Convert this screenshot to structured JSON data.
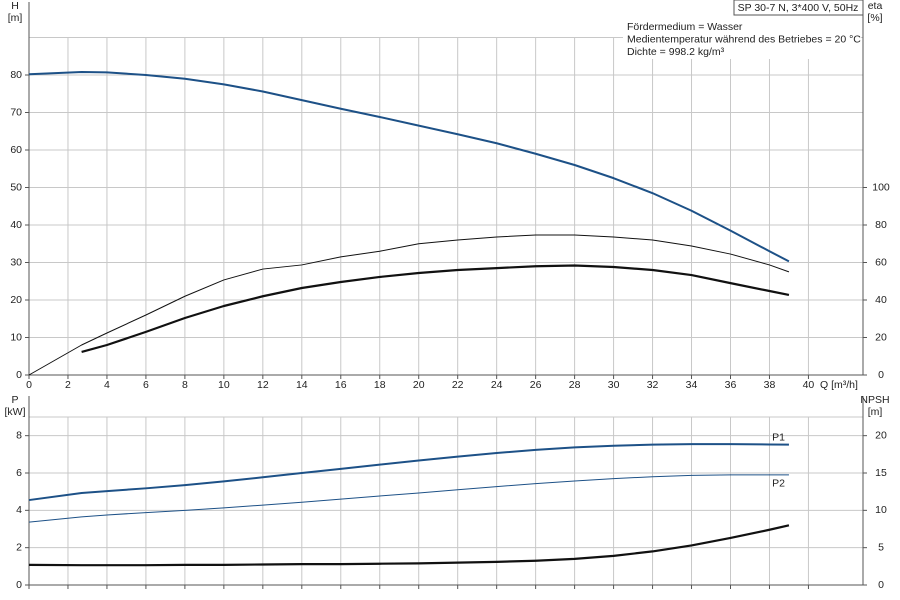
{
  "chart_data": [
    {
      "type": "line",
      "title": "SP 30-7 N, 3*400 V, 50Hz",
      "annotations": [
        "Fördermedium = Wasser",
        "Medientemperatur während des Betriebes = 20 °C",
        "Dichte = 998.2 kg/m³"
      ],
      "x_label": "Q [m³/h]",
      "y_label": "H",
      "y_unit": "[m]",
      "y2_label": "eta",
      "y2_unit": "[%]",
      "x": [
        0,
        2.7,
        4,
        6,
        8,
        10,
        12,
        14,
        16,
        18,
        20,
        22,
        24,
        26,
        28,
        30,
        32,
        34,
        36,
        38,
        39
      ],
      "xlim": [
        0,
        42.8
      ],
      "xticks": [
        0,
        2,
        4,
        6,
        8,
        10,
        12,
        14,
        16,
        18,
        20,
        22,
        24,
        26,
        28,
        30,
        32,
        34,
        36,
        38,
        40
      ],
      "ylim": [
        0,
        90
      ],
      "yticks": [
        0,
        10,
        20,
        30,
        40,
        50,
        60,
        70,
        80
      ],
      "y2lim": [
        0,
        180
      ],
      "y2ticks": [
        0,
        20,
        40,
        60,
        80,
        100
      ],
      "grid": true,
      "show_xtick_labels": true,
      "series": [
        {
          "color": "#1d5187",
          "line_width": 2,
          "values": [
            80.2,
            80.8,
            80.7,
            80,
            79,
            77.5,
            75.6,
            73.3,
            71,
            68.8,
            66.5,
            64.2,
            61.8,
            59,
            56,
            52.5,
            48.5,
            43.8,
            38.5,
            33,
            30.3
          ]
        },
        {
          "color": "#111111",
          "line_width": 1,
          "axis": "y2",
          "values": [
            0,
            16,
            22.4,
            32,
            42,
            50.7,
            56.5,
            58.7,
            63,
            66,
            70,
            72,
            73.6,
            74.7,
            74.7,
            73.6,
            72,
            68.8,
            64.5,
            58.7,
            55
          ]
        },
        {
          "color": "#111111",
          "line_width": 2.2,
          "axis": "y2",
          "values": [
            null,
            12.3,
            16,
            23,
            30.4,
            36.8,
            42,
            46.4,
            49.6,
            52.3,
            54.4,
            56,
            57,
            58,
            58.4,
            57.6,
            56,
            53.3,
            49,
            44.8,
            42.7
          ]
        }
      ]
    },
    {
      "type": "line",
      "y_label": "P",
      "y_unit": "[kW]",
      "y2_label": "NPSH",
      "y2_unit": "[m]",
      "x": [
        0,
        2.7,
        4,
        6,
        8,
        10,
        12,
        14,
        16,
        18,
        20,
        22,
        24,
        26,
        28,
        30,
        32,
        34,
        36,
        38,
        39
      ],
      "xlim": [
        0,
        42.8
      ],
      "xticks": [
        0,
        2,
        4,
        6,
        8,
        10,
        12,
        14,
        16,
        18,
        20,
        22,
        24,
        26,
        28,
        30,
        32,
        34,
        36,
        38,
        40
      ],
      "ylim": [
        0,
        9
      ],
      "yticks": [
        0,
        2,
        4,
        6,
        8
      ],
      "y2lim": [
        0,
        22.5
      ],
      "y2ticks": [
        0,
        5,
        10,
        15,
        20
      ],
      "grid": true,
      "show_xtick_labels": false,
      "series": [
        {
          "name": "P1",
          "color": "#1d5187",
          "line_width": 2,
          "values": [
            4.55,
            4.93,
            5.03,
            5.18,
            5.35,
            5.55,
            5.77,
            6.0,
            6.22,
            6.45,
            6.67,
            6.88,
            7.07,
            7.24,
            7.37,
            7.46,
            7.52,
            7.55,
            7.55,
            7.53,
            7.52
          ]
        },
        {
          "name": "P2",
          "color": "#1d5187",
          "line_width": 1,
          "values": [
            3.37,
            3.65,
            3.75,
            3.88,
            4.0,
            4.13,
            4.28,
            4.43,
            4.6,
            4.77,
            4.93,
            5.1,
            5.27,
            5.43,
            5.57,
            5.7,
            5.8,
            5.87,
            5.9,
            5.9,
            5.9
          ]
        },
        {
          "color": "#111111",
          "line_width": 2.2,
          "axis": "y2",
          "values": [
            2.7,
            2.65,
            2.65,
            2.65,
            2.7,
            2.7,
            2.75,
            2.8,
            2.8,
            2.85,
            2.9,
            3.0,
            3.1,
            3.25,
            3.5,
            3.9,
            4.5,
            5.3,
            6.3,
            7.4,
            8.0
          ]
        }
      ]
    }
  ]
}
